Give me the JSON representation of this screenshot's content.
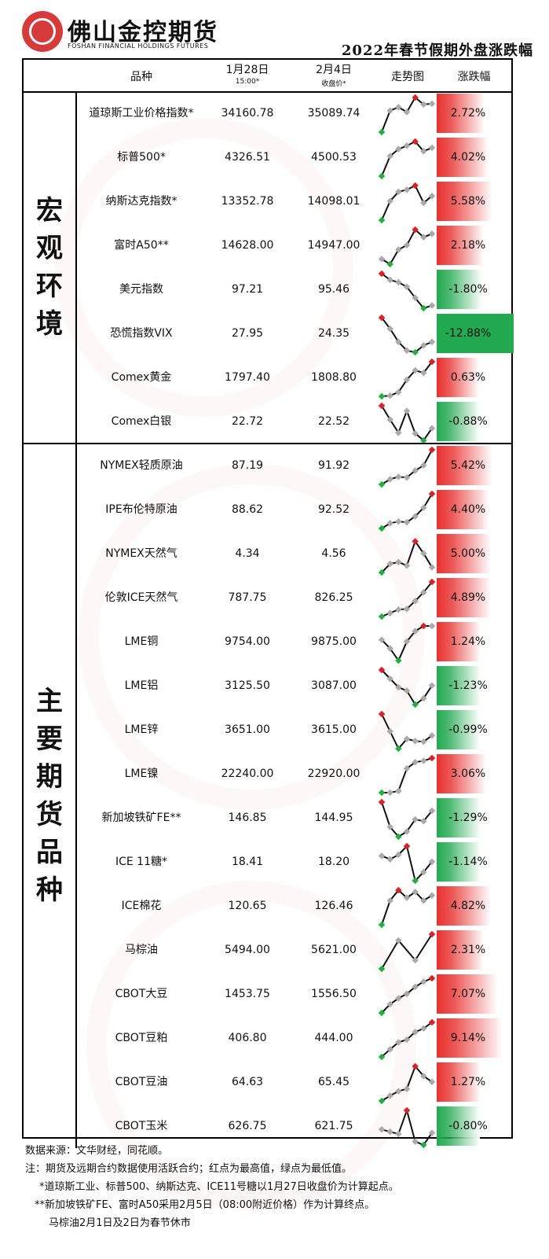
{
  "header": {
    "company": "佛山金控期货",
    "company_en": "FOSHAN FINANCIAL HOLDINGS FUTURES",
    "title": "2022年春节假期外盘涨跌幅"
  },
  "columns": {
    "name": "品种",
    "date1": "1月28日",
    "date1_sub": "15:00*",
    "date2": "2月4日",
    "date2_sub": "收盘价*",
    "trend": "走势图",
    "change": "涨跌幅"
  },
  "sections": [
    {
      "title": "宏观环境",
      "rows": [
        {
          "name": "道琼斯工业价格指数*",
          "p1": "34160.78",
          "p2": "35089.74",
          "chg": "2.72%",
          "v": 2.72,
          "trend": [
            0.0,
            0.62,
            0.72,
            0.58,
            1.0,
            0.8,
            0.82
          ]
        },
        {
          "name": "标普500*",
          "p1": "4326.51",
          "p2": "4500.53",
          "chg": "4.02%",
          "v": 4.02,
          "trend": [
            0.0,
            0.58,
            0.78,
            0.88,
            1.0,
            0.72,
            0.82
          ]
        },
        {
          "name": "纳斯达克指数*",
          "p1": "13352.78",
          "p2": "14098.01",
          "chg": "5.58%",
          "v": 5.58,
          "trend": [
            0.0,
            0.55,
            0.82,
            0.88,
            1.0,
            0.5,
            0.7
          ]
        },
        {
          "name": "富时A50**",
          "p1": "14628.00",
          "p2": "14947.00",
          "chg": "2.18%",
          "v": 2.18,
          "trend": [
            0.15,
            0.0,
            0.42,
            0.55,
            1.0,
            0.78,
            0.88
          ]
        },
        {
          "name": "美元指数",
          "p1": "97.21",
          "p2": "95.46",
          "chg": "-1.80%",
          "v": -1.8,
          "trend": [
            1.0,
            0.82,
            0.75,
            0.62,
            0.3,
            0.0,
            0.08
          ]
        },
        {
          "name": "恐慌指数VIX",
          "p1": "27.95",
          "p2": "24.35",
          "chg": "-12.88%",
          "v": -12.88,
          "trend": [
            1.0,
            0.68,
            0.3,
            0.05,
            0.0,
            0.2,
            0.3
          ]
        },
        {
          "name": "Comex黄金",
          "p1": "1797.40",
          "p2": "1808.80",
          "chg": "0.63%",
          "v": 0.63,
          "trend": [
            0.0,
            0.02,
            0.12,
            0.48,
            0.75,
            0.68,
            1.0
          ]
        },
        {
          "name": "Comex白银",
          "p1": "22.72",
          "p2": "22.52",
          "chg": "-0.88%",
          "v": -0.88,
          "trend": [
            1.0,
            0.6,
            0.22,
            0.85,
            0.2,
            0.0,
            0.35
          ]
        }
      ]
    },
    {
      "title": "主要期货品种",
      "rows": [
        {
          "name": "NYMEX轻质原油",
          "p1": "87.19",
          "p2": "91.92",
          "chg": "5.42%",
          "v": 5.42,
          "trend": [
            0.0,
            0.15,
            0.22,
            0.2,
            0.4,
            0.55,
            1.0
          ]
        },
        {
          "name": "IPE布伦特原油",
          "p1": "88.62",
          "p2": "92.52",
          "chg": "4.40%",
          "v": 4.4,
          "trend": [
            0.0,
            0.15,
            0.2,
            0.18,
            0.35,
            0.6,
            1.0
          ]
        },
        {
          "name": "NYMEX天然气",
          "p1": "4.34",
          "p2": "4.56",
          "chg": "5.00%",
          "v": 5.0,
          "trend": [
            0.0,
            0.25,
            0.3,
            0.2,
            0.9,
            0.55,
            0.15
          ]
        },
        {
          "name": "伦敦ICE天然气",
          "p1": "787.75",
          "p2": "826.25",
          "chg": "4.89%",
          "v": 4.89,
          "trend": [
            0.0,
            0.1,
            0.2,
            0.22,
            0.45,
            0.7,
            1.0
          ]
        },
        {
          "name": "LME铜",
          "p1": "9754.00",
          "p2": "9875.00",
          "chg": "1.24%",
          "v": 1.24,
          "trend": [
            0.6,
            0.35,
            0.0,
            0.55,
            0.85,
            1.0,
            1.0
          ]
        },
        {
          "name": "LME铝",
          "p1": "3125.50",
          "p2": "3087.00",
          "chg": "-1.23%",
          "v": -1.23,
          "trend": [
            1.0,
            0.75,
            0.5,
            0.4,
            0.0,
            0.18,
            0.55
          ]
        },
        {
          "name": "LME锌",
          "p1": "3651.00",
          "p2": "3615.00",
          "chg": "-0.99%",
          "v": -0.99,
          "trend": [
            1.0,
            0.5,
            0.0,
            0.28,
            0.22,
            0.2,
            0.38
          ]
        },
        {
          "name": "LME镍",
          "p1": "22240.00",
          "p2": "22920.00",
          "chg": "3.06%",
          "v": 3.06,
          "trend": [
            0.0,
            0.0,
            0.05,
            0.7,
            0.88,
            0.92,
            1.0
          ]
        },
        {
          "name": "新加坡铁矿FE**",
          "p1": "146.85",
          "p2": "144.95",
          "chg": "-1.29%",
          "v": -1.29,
          "trend": [
            1.0,
            0.28,
            0.0,
            0.15,
            0.5,
            0.45,
            0.75
          ]
        },
        {
          "name": "ICE 11糖*",
          "p1": "18.41",
          "p2": "18.20",
          "chg": "-1.14%",
          "v": -1.14,
          "trend": [
            0.72,
            0.62,
            0.75,
            1.0,
            0.0,
            0.25,
            0.55
          ]
        },
        {
          "name": "ICE棉花",
          "p1": "120.65",
          "p2": "126.46",
          "chg": "4.82%",
          "v": 4.82,
          "trend": [
            0.0,
            0.7,
            1.0,
            0.78,
            0.95,
            0.7,
            0.85
          ]
        },
        {
          "name": "马棕油",
          "p1": "5494.00",
          "p2": "5621.00",
          "chg": "2.31%",
          "v": 2.31,
          "trend": [
            0.0,
            0.82,
            0.25,
            1.0
          ]
        },
        {
          "name": "CBOT大豆",
          "p1": "1453.75",
          "p2": "1556.50",
          "chg": "7.07%",
          "v": 7.07,
          "trend": [
            0.0,
            0.25,
            0.42,
            0.55,
            0.75,
            0.9,
            1.0
          ]
        },
        {
          "name": "CBOT豆粕",
          "p1": "406.80",
          "p2": "444.00",
          "chg": "9.14%",
          "v": 9.14,
          "trend": [
            0.0,
            0.22,
            0.42,
            0.5,
            0.72,
            0.82,
            1.0
          ]
        },
        {
          "name": "CBOT豆油",
          "p1": "64.63",
          "p2": "65.45",
          "chg": "1.27%",
          "v": 1.27,
          "trend": [
            0.0,
            0.15,
            0.28,
            0.35,
            1.0,
            0.72,
            0.55
          ]
        },
        {
          "name": "CBOT玉米",
          "p1": "626.75",
          "p2": "621.75",
          "chg": "-0.80%",
          "v": -0.8,
          "trend": [
            0.45,
            0.38,
            0.32,
            1.0,
            0.1,
            0.0,
            0.35
          ]
        }
      ]
    }
  ],
  "colors": {
    "up": "#e8312f",
    "down": "#23a950",
    "max_point": "#e02020",
    "min_point": "#20b040",
    "line": "#111111"
  },
  "footer": [
    "数据来源：文华财经，同花顺。",
    "注：期货及远期合约数据使用活跃合约；红点为最高值，绿点为最低值。",
    "*道琼斯工业、标普500、纳斯达克、ICE11号糖以1月27日收盘价为计算起点。",
    "**新加坡铁矿FE、富时A50采用2月5日（08:00附近价格）作为计算终点。",
    "马棕油2月1日及2日为春节休市"
  ]
}
